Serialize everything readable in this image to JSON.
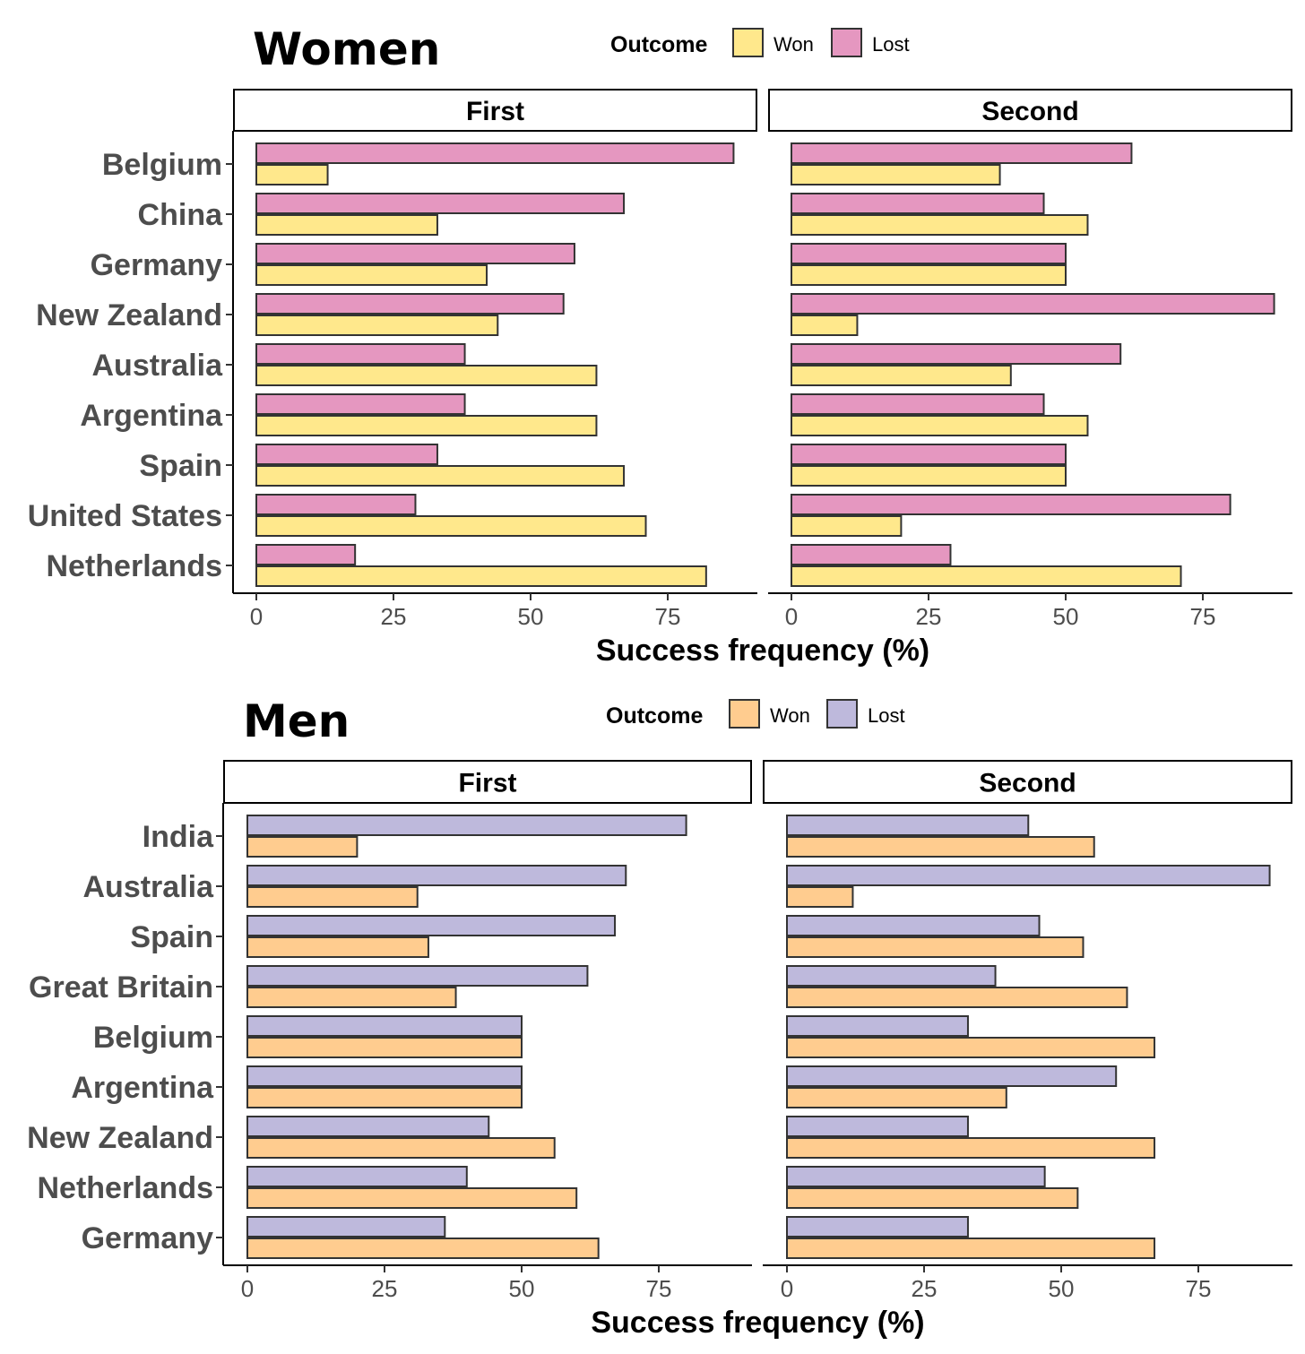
{
  "chart_data": [
    {
      "type": "bar",
      "orientation": "horizontal",
      "title": "Women",
      "legend": {
        "title": "Outcome",
        "placement": "top",
        "entries": [
          {
            "label": "Won",
            "color": "#FFE88C"
          },
          {
            "label": "Lost",
            "color": "#E597C0"
          }
        ]
      },
      "facets": [
        "First",
        "Second"
      ],
      "categories": [
        "Belgium",
        "China",
        "Germany",
        "New Zealand",
        "Australia",
        "Argentina",
        "Spain",
        "United States",
        "Netherlands"
      ],
      "series": [
        {
          "name": "Lost",
          "color": "#E597C0",
          "values": {
            "First": [
              87,
              67,
              58,
              56,
              38,
              38,
              33,
              29,
              18
            ],
            "Second": [
              62,
              46,
              50,
              88,
              60,
              46,
              50,
              80,
              29
            ]
          }
        },
        {
          "name": "Won",
          "color": "#FFE88C",
          "values": {
            "First": [
              13,
              33,
              42,
              44,
              62,
              62,
              67,
              71,
              82
            ],
            "Second": [
              38,
              54,
              50,
              12,
              40,
              54,
              50,
              20,
              71
            ]
          }
        }
      ],
      "xlabel": "Success frequency (%)",
      "xticks": [
        "0",
        "25",
        "50",
        "75"
      ],
      "xlim": [
        -4.3,
        91.5
      ],
      "grid": false
    },
    {
      "type": "bar",
      "orientation": "horizontal",
      "title": "Men",
      "legend": {
        "title": "Outcome",
        "placement": "top",
        "entries": [
          {
            "label": "Won",
            "color": "#FFCC8F"
          },
          {
            "label": "Lost",
            "color": "#BEB9DC"
          }
        ]
      },
      "facets": [
        "First",
        "Second"
      ],
      "categories": [
        "India",
        "Australia",
        "Spain",
        "Great Britain",
        "Belgium",
        "Argentina",
        "New Zealand",
        "Netherlands",
        "Germany"
      ],
      "series": [
        {
          "name": "Lost",
          "color": "#BEB9DC",
          "values": {
            "First": [
              80,
              69,
              67,
              62,
              50,
              50,
              44,
              40,
              36
            ],
            "Second": [
              44,
              88,
              46,
              38,
              33,
              60,
              33,
              47,
              33
            ]
          }
        },
        {
          "name": "Won",
          "color": "#FFCC8F",
          "values": {
            "First": [
              20,
              31,
              33,
              38,
              50,
              50,
              56,
              60,
              64
            ],
            "Second": [
              56,
              12,
              54,
              62,
              67,
              40,
              67,
              53,
              67
            ]
          }
        }
      ],
      "xlabel": "Success frequency (%)",
      "xticks": [
        "0",
        "25",
        "50",
        "75"
      ],
      "xlim": [
        -4.3,
        91.5
      ],
      "grid": false
    }
  ]
}
